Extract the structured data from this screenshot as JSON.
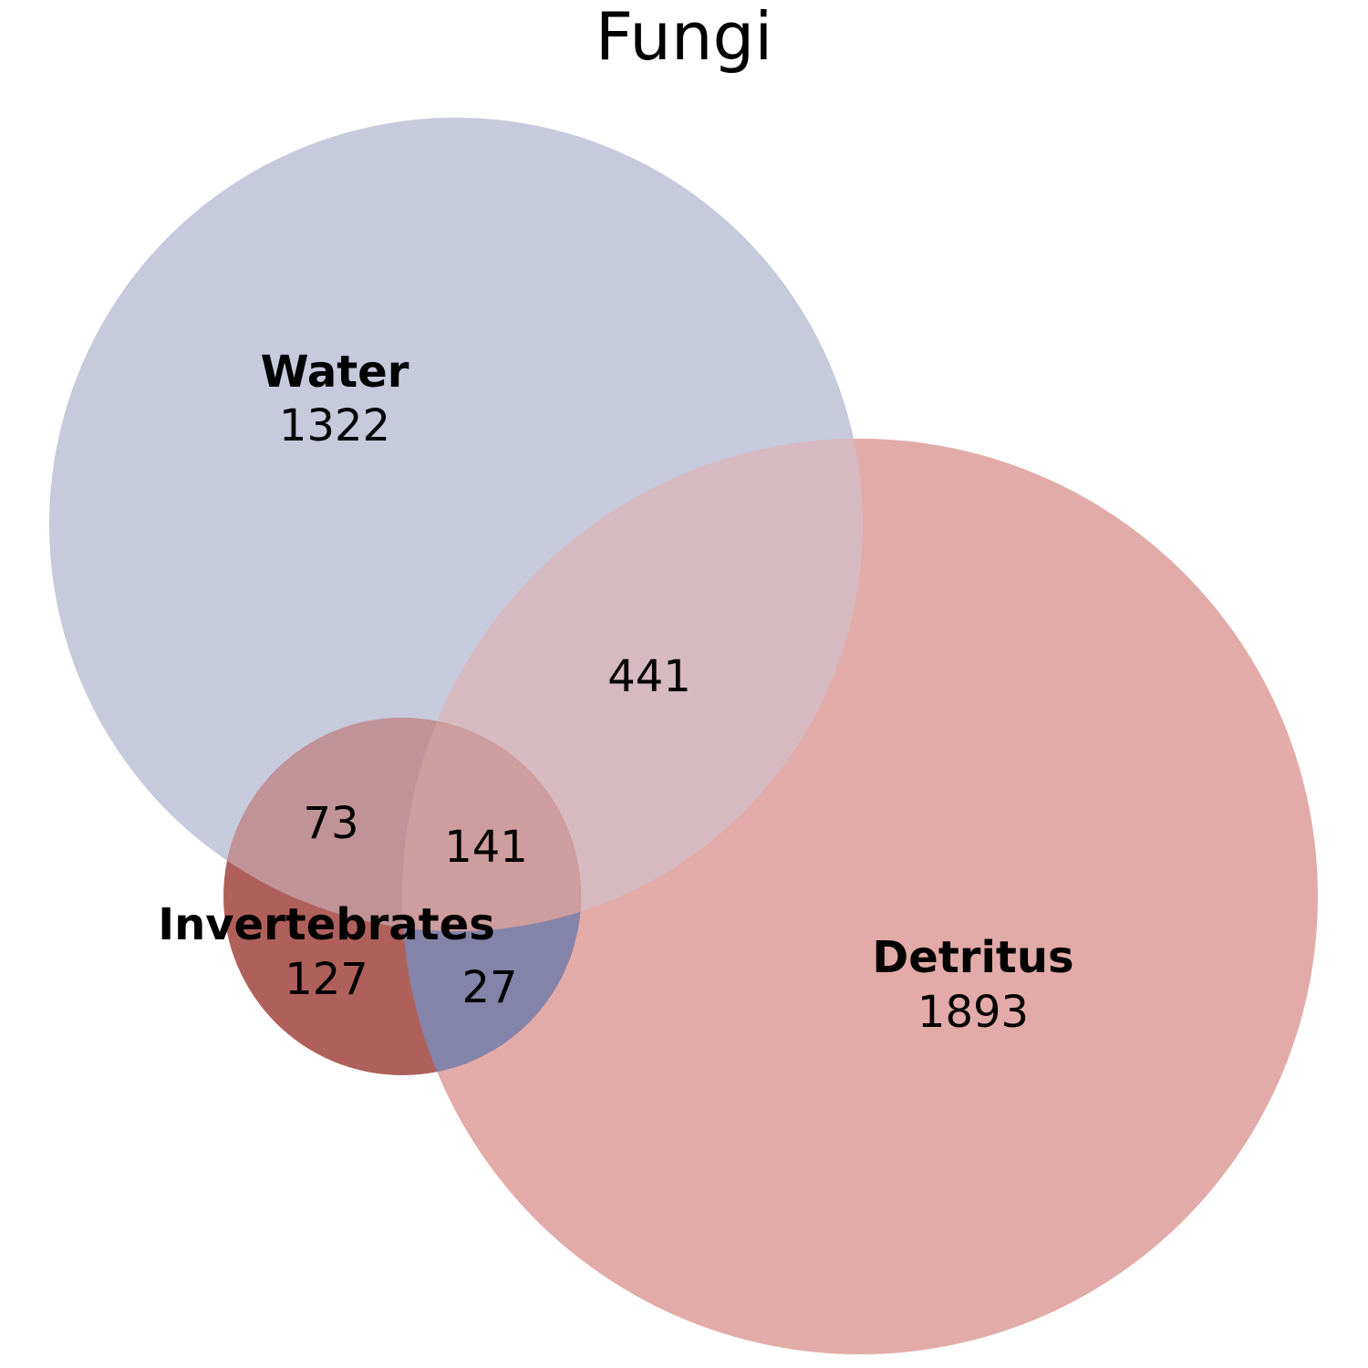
{
  "title": "Fungi",
  "colors": {
    "water": "#c7c9dc",
    "detritus": "#e2aba8",
    "invertebrates_only": "#b0605b",
    "water_detritus": "#d7b9c1",
    "water_invertebrates": "#c09398",
    "invertebrates_detritus": "#8484aa",
    "all_three": "#ce9d9e"
  },
  "sets": {
    "water": {
      "label": "Water",
      "count": "1322"
    },
    "detritus": {
      "label": "Detritus",
      "count": "1893"
    },
    "invertebrates": {
      "label": "Invertebrates",
      "count": "127"
    }
  },
  "intersections": {
    "water_detritus": "441",
    "water_invertebrates": "73",
    "invertebrates_detritus": "27",
    "all_three": "141"
  }
}
